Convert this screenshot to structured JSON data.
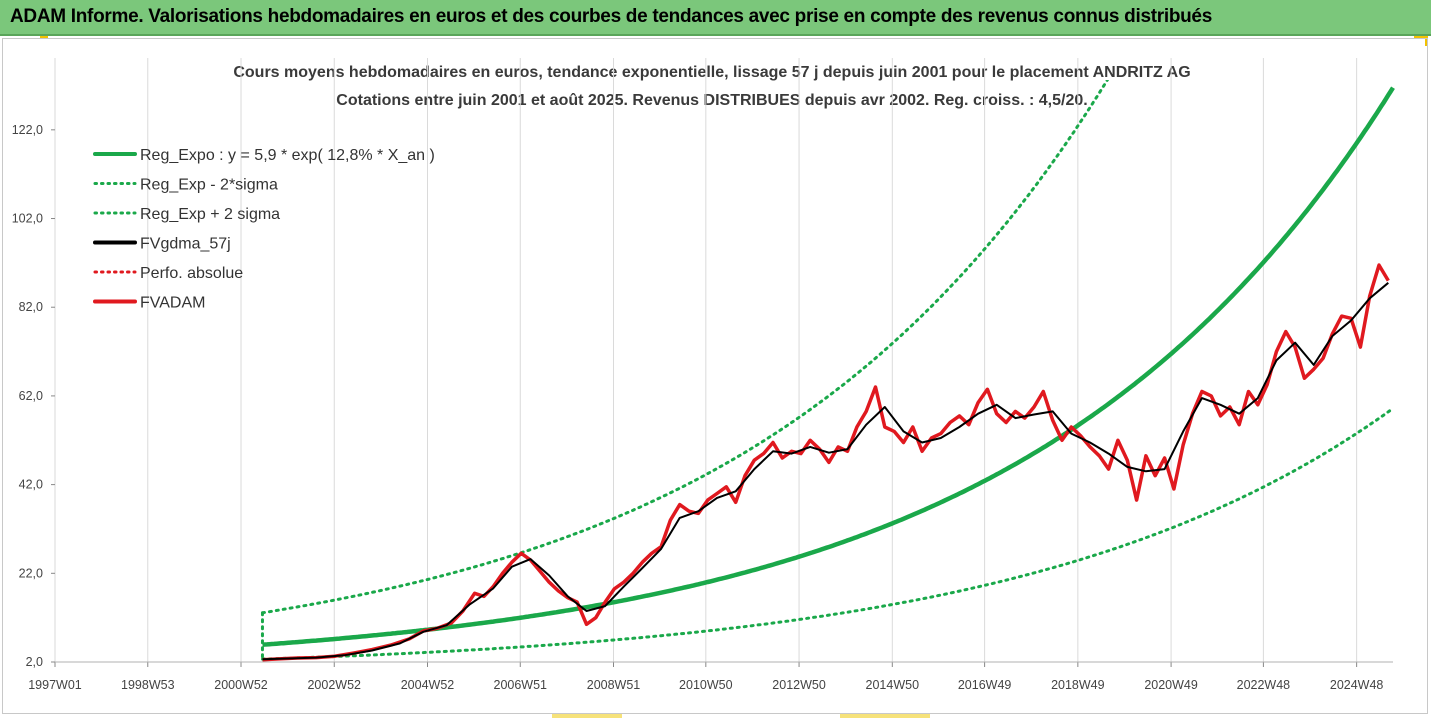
{
  "banner": {
    "title": "ADAM Informe. Valorisations hebdomadaires en euros et des courbes de tendances avec prise en compte des revenus connus distribués"
  },
  "colors": {
    "banner_bg": "#7bc77b",
    "trend_green": "#1aa84a",
    "price_red": "#e0191f",
    "smooth_black": "#000000",
    "accent_yellow": "#f2c200"
  },
  "chart_data": {
    "type": "line",
    "title": "Cours moyens hebdomadaires en euros, tendance exponentielle, lissage 57 j depuis juin 2001 pour le placement ANDRITZ AG",
    "subtitle": "Cotations entre juin 2001 et août 2025. Revenus DISTRIBUES depuis avr 2002. Reg. croiss. : 4,5/20.",
    "xlabel": "",
    "ylabel": "",
    "x_range": [
      1997.0,
      2025.7
    ],
    "ylim": [
      2.0,
      140.0
    ],
    "y_ticks": [
      2.0,
      22.0,
      42.0,
      62.0,
      82.0,
      102.0,
      122.0
    ],
    "y_tick_labels": [
      "2,0",
      "22,0",
      "42,0",
      "62,0",
      "82,0",
      "102,0",
      "122,0"
    ],
    "x_ticks": [
      1997.0,
      1998.99,
      2000.99,
      2002.99,
      2004.99,
      2006.98,
      2008.98,
      2010.96,
      2012.96,
      2014.96,
      2016.94,
      2018.94,
      2020.94,
      2022.92,
      2024.92
    ],
    "x_tick_labels": [
      "1997W01",
      "1998W53",
      "2000W52",
      "2002W52",
      "2004W52",
      "2006W51",
      "2008W51",
      "2010W50",
      "2012W50",
      "2014W50",
      "2016W49",
      "2018W49",
      "2020W49",
      "2022W48",
      "2024W48"
    ],
    "grid": "vertical",
    "legend_position": "top-left",
    "regression": {
      "a": 5.9,
      "rate": 0.128,
      "start": 2001.45
    },
    "legend": [
      {
        "label": "Reg_Expo : y = 5,9 * exp( 12,8% *  X_an )",
        "color": "#1aa84a",
        "style": "solid"
      },
      {
        "label": "Reg_Exp - 2*sigma",
        "color": "#1aa84a",
        "style": "dotted"
      },
      {
        "label": "Reg_Exp + 2 sigma",
        "color": "#1aa84a",
        "style": "dotted"
      },
      {
        "label": "FVgdma_57j",
        "color": "#000000",
        "style": "solid"
      },
      {
        "label": "Perfo. absolue",
        "color": "#e0191f",
        "style": "dotted"
      },
      {
        "label": "FVADAM",
        "color": "#e0191f",
        "style": "solid"
      }
    ],
    "series": [
      {
        "name": "FVADAM",
        "x": [
          2001.45,
          2001.8,
          2002.2,
          2002.6,
          2003.0,
          2003.4,
          2003.8,
          2004.2,
          2004.6,
          2004.9,
          2005.2,
          2005.5,
          2005.75,
          2006.0,
          2006.2,
          2006.4,
          2006.6,
          2006.8,
          2007.0,
          2007.2,
          2007.4,
          2007.6,
          2007.8,
          2008.0,
          2008.2,
          2008.4,
          2008.6,
          2008.8,
          2009.0,
          2009.2,
          2009.4,
          2009.6,
          2009.8,
          2010.0,
          2010.2,
          2010.4,
          2010.6,
          2010.8,
          2011.0,
          2011.2,
          2011.4,
          2011.6,
          2011.8,
          2012.0,
          2012.2,
          2012.4,
          2012.6,
          2012.8,
          2013.0,
          2013.2,
          2013.4,
          2013.6,
          2013.8,
          2014.0,
          2014.2,
          2014.4,
          2014.6,
          2014.8,
          2015.0,
          2015.2,
          2015.4,
          2015.6,
          2015.8,
          2016.0,
          2016.2,
          2016.4,
          2016.6,
          2016.8,
          2017.0,
          2017.2,
          2017.4,
          2017.6,
          2017.8,
          2018.0,
          2018.2,
          2018.4,
          2018.6,
          2018.8,
          2019.0,
          2019.2,
          2019.4,
          2019.6,
          2019.8,
          2020.0,
          2020.2,
          2020.4,
          2020.6,
          2020.8,
          2021.0,
          2021.2,
          2021.4,
          2021.6,
          2021.8,
          2022.0,
          2022.2,
          2022.4,
          2022.6,
          2022.8,
          2023.0,
          2023.2,
          2023.4,
          2023.6,
          2023.8,
          2024.0,
          2024.2,
          2024.4,
          2024.6,
          2024.8,
          2025.0,
          2025.2,
          2025.4,
          2025.6
        ],
        "values": [
          2.5,
          2.7,
          2.9,
          3.0,
          3.3,
          4.0,
          4.8,
          5.8,
          7.2,
          9.0,
          9.6,
          10.8,
          13.5,
          17.5,
          16.8,
          19.0,
          22.0,
          24.5,
          26.5,
          25.0,
          22.5,
          20.0,
          18.0,
          16.5,
          15.5,
          10.5,
          12.0,
          15.5,
          18.5,
          20.0,
          22.0,
          24.5,
          26.5,
          28.0,
          34.0,
          37.5,
          36.0,
          35.5,
          38.5,
          40.0,
          41.5,
          38.0,
          44.0,
          47.5,
          49.0,
          51.5,
          48.0,
          49.5,
          49.0,
          52.0,
          50.0,
          47.0,
          50.5,
          49.5,
          55.0,
          58.5,
          64.0,
          55.0,
          54.0,
          51.5,
          55.0,
          49.5,
          52.5,
          53.5,
          56.0,
          57.5,
          55.5,
          60.5,
          63.5,
          58.0,
          56.0,
          58.5,
          57.0,
          59.5,
          63.0,
          56.5,
          52.0,
          55.0,
          53.0,
          50.5,
          48.5,
          45.5,
          52.0,
          47.5,
          38.5,
          48.5,
          44.0,
          48.0,
          41.0,
          51.0,
          58.0,
          63.0,
          62.0,
          57.5,
          59.5,
          55.5,
          63.0,
          60.0,
          64.5,
          72.0,
          76.5,
          73.0,
          66.0,
          68.0,
          70.5,
          76.0,
          80.0,
          79.5,
          73.0,
          84.5,
          91.5,
          88.0
        ]
      },
      {
        "name": "FVgdma_57j",
        "x": [
          2001.45,
          2002.0,
          2002.6,
          2003.2,
          2003.8,
          2004.4,
          2004.9,
          2005.4,
          2005.9,
          2006.4,
          2006.8,
          2007.2,
          2007.6,
          2008.0,
          2008.4,
          2008.8,
          2009.2,
          2009.6,
          2010.0,
          2010.4,
          2010.8,
          2011.2,
          2011.6,
          2012.0,
          2012.4,
          2012.8,
          2013.2,
          2013.6,
          2014.0,
          2014.4,
          2014.8,
          2015.2,
          2015.6,
          2016.0,
          2016.4,
          2016.8,
          2017.2,
          2017.6,
          2018.0,
          2018.4,
          2018.8,
          2019.2,
          2019.6,
          2020.0,
          2020.4,
          2020.8,
          2021.2,
          2021.6,
          2022.0,
          2022.4,
          2022.8,
          2023.2,
          2023.6,
          2024.0,
          2024.4,
          2024.8,
          2025.2,
          2025.6
        ],
        "values": [
          2.6,
          2.8,
          3.0,
          3.5,
          4.6,
          6.2,
          8.8,
          10.3,
          15.0,
          18.6,
          23.5,
          25.2,
          21.5,
          16.8,
          13.5,
          14.6,
          19.0,
          23.2,
          27.5,
          34.5,
          36.0,
          39.0,
          40.5,
          45.5,
          49.5,
          49.0,
          50.5,
          49.2,
          50.0,
          55.5,
          59.5,
          54.0,
          51.5,
          52.5,
          55.0,
          58.0,
          60.0,
          57.0,
          57.8,
          58.5,
          53.5,
          51.5,
          49.0,
          46.0,
          45.0,
          45.5,
          54.0,
          61.5,
          60.0,
          58.0,
          61.5,
          70.0,
          74.0,
          69.0,
          75.5,
          79.0,
          84.0,
          87.5
        ]
      }
    ]
  }
}
